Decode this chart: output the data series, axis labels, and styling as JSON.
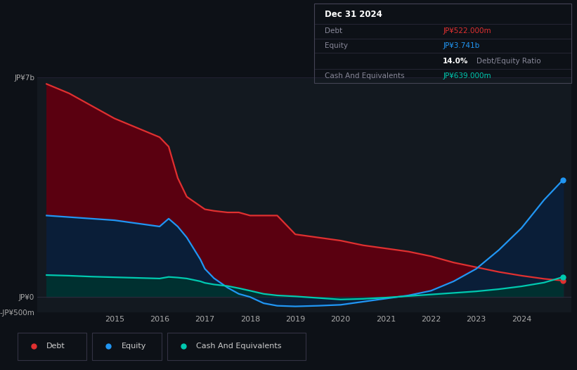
{
  "background_color": "#0d1117",
  "plot_bg_color": "#131920",
  "tooltip": {
    "date": "Dec 31 2024",
    "debt_label": "Debt",
    "debt_value": "JP¥522.000m",
    "equity_label": "Equity",
    "equity_value": "JP¥3.741b",
    "ratio_value": "14.0%",
    "ratio_label": "Debt/Equity Ratio",
    "cash_label": "Cash And Equivalents",
    "cash_value": "JP¥639.000m"
  },
  "ylim": [
    -500,
    7000
  ],
  "ytick_vals": [
    -500,
    0,
    7000
  ],
  "ytick_labels": [
    "-JP¥500m",
    "JP¥0",
    "JP¥7b"
  ],
  "grid_color": "#222233",
  "debt_color": "#e03030",
  "equity_color": "#2196f3",
  "cash_color": "#00c9b0",
  "debt_fill_color": "#5a0010",
  "equity_fill_color": "#0a1e38",
  "cash_fill_color": "#003030",
  "legend_items": [
    "Debt",
    "Equity",
    "Cash And Equivalents"
  ],
  "xtick_years": [
    2015,
    2016,
    2017,
    2018,
    2019,
    2020,
    2021,
    2022,
    2023,
    2024
  ],
  "years": [
    2013.5,
    2014.0,
    2014.5,
    2015.0,
    2015.5,
    2016.0,
    2016.2,
    2016.4,
    2016.6,
    2016.9,
    2017.0,
    2017.2,
    2017.5,
    2017.75,
    2018.0,
    2018.3,
    2018.6,
    2019.0,
    2019.5,
    2020.0,
    2020.5,
    2021.0,
    2021.5,
    2022.0,
    2022.5,
    2023.0,
    2023.5,
    2024.0,
    2024.5,
    2024.92
  ],
  "debt": [
    6800,
    6500,
    6100,
    5700,
    5400,
    5100,
    4800,
    3800,
    3200,
    2900,
    2800,
    2750,
    2700,
    2700,
    2600,
    2600,
    2600,
    2000,
    1900,
    1800,
    1650,
    1550,
    1450,
    1300,
    1100,
    950,
    800,
    680,
    580,
    522
  ],
  "equity": [
    2600,
    2550,
    2500,
    2450,
    2350,
    2250,
    2500,
    2250,
    1900,
    1200,
    900,
    600,
    300,
    100,
    0,
    -200,
    -280,
    -300,
    -280,
    -250,
    -150,
    -50,
    50,
    200,
    500,
    900,
    1500,
    2200,
    3100,
    3741
  ],
  "cash": [
    700,
    680,
    650,
    630,
    610,
    590,
    640,
    620,
    590,
    500,
    450,
    400,
    350,
    280,
    200,
    100,
    50,
    20,
    -30,
    -80,
    -60,
    -20,
    30,
    80,
    130,
    180,
    250,
    340,
    460,
    639
  ]
}
